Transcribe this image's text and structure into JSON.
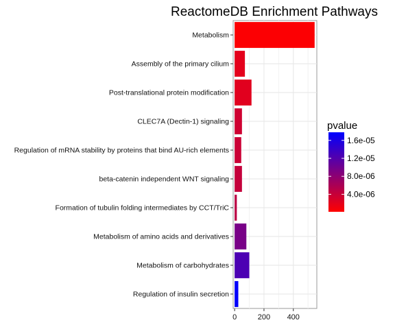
{
  "chart_data": {
    "type": "bar",
    "orientation": "horizontal",
    "title": "ReactomeDB Enrichment Pathways",
    "xlabel": "",
    "ylabel": "",
    "xlim": [
      -10,
      560
    ],
    "x_ticks": [
      0,
      200,
      400
    ],
    "grid": true,
    "legend_position": "right",
    "legend": {
      "title": "pvalue",
      "type": "colorbar",
      "range": [
        1e-07,
        1.78e-05
      ],
      "ticks": [
        {
          "value": 1.6e-05,
          "label": "1.6e-05"
        },
        {
          "value": 1.2e-05,
          "label": "1.2e-05"
        },
        {
          "value": 8e-06,
          "label": "8.0e-06"
        },
        {
          "value": 4e-06,
          "label": "4.0e-06"
        }
      ],
      "low_color": "#ff0000",
      "high_color": "#0000ff"
    },
    "bars": [
      {
        "category": "Metabolism",
        "value": 545,
        "pvalue": 3e-07
      },
      {
        "category": "Assembly of the primary cilium",
        "value": 70,
        "pvalue": 2e-06
      },
      {
        "category": "Post-translational protein modification",
        "value": 115,
        "pvalue": 2.2e-06
      },
      {
        "category": "CLEC7A (Dectin-1) signaling",
        "value": 50,
        "pvalue": 3.5e-06
      },
      {
        "category": "Regulation of mRNA stability by proteins that bind AU-rich elements",
        "value": 45,
        "pvalue": 3.8e-06
      },
      {
        "category": "beta-catenin independent WNT signaling",
        "value": 50,
        "pvalue": 4.2e-06
      },
      {
        "category": "Formation of tubulin folding intermediates by CCT/TriC",
        "value": 15,
        "pvalue": 4.8e-06
      },
      {
        "category": "Metabolism of amino acids and derivatives",
        "value": 80,
        "pvalue": 9.5e-06
      },
      {
        "category": "Metabolism of carbohydrates",
        "value": 100,
        "pvalue": 1.25e-05
      },
      {
        "category": "Regulation of insulin secretion",
        "value": 25,
        "pvalue": 1.75e-05
      }
    ]
  }
}
